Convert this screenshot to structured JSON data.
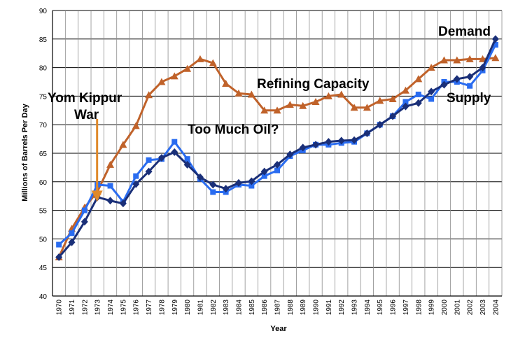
{
  "chart_data": {
    "type": "line",
    "xlabel": "Year",
    "ylabel": "Millions of Barrels Per Day",
    "ylim": [
      40,
      90
    ],
    "yticks": [
      40,
      45,
      50,
      55,
      60,
      65,
      70,
      75,
      80,
      85,
      90
    ],
    "categories": [
      "1970",
      "1971",
      "1972",
      "1973",
      "1974",
      "1975",
      "1976",
      "1977",
      "1978",
      "1979",
      "1980",
      "1981",
      "1982",
      "1983",
      "1984",
      "1985",
      "1986",
      "1987",
      "1988",
      "1989",
      "1990",
      "1991",
      "1992",
      "1993",
      "1994",
      "1995",
      "1996",
      "1997",
      "1998",
      "1999",
      "2000",
      "2001",
      "2002",
      "2003",
      "2004"
    ],
    "grid": true,
    "series": [
      {
        "key": "refining",
        "color": "#c0622a",
        "marker": "triangle",
        "values": [
          46.8,
          51.8,
          55.5,
          58.3,
          63.0,
          66.5,
          69.8,
          75.2,
          77.5,
          78.5,
          79.8,
          81.5,
          80.8,
          77.2,
          75.5,
          75.3,
          72.5,
          72.5,
          73.5,
          73.3,
          74.0,
          75.0,
          75.3,
          73.0,
          73.0,
          74.2,
          74.5,
          76.0,
          78.0,
          80.0,
          81.3,
          81.3,
          81.5,
          81.5,
          81.7
        ]
      },
      {
        "key": "supply",
        "color": "#2a6cf0",
        "marker": "square",
        "values": [
          49.0,
          51.0,
          55.0,
          59.5,
          59.3,
          56.5,
          61.0,
          63.8,
          64.0,
          67.0,
          64.0,
          60.5,
          58.2,
          58.2,
          59.5,
          59.3,
          61.0,
          62.0,
          64.5,
          65.5,
          66.5,
          66.5,
          66.8,
          67.0,
          68.5,
          70.0,
          71.5,
          74.0,
          75.3,
          74.5,
          77.5,
          77.5,
          76.8,
          79.5,
          84.0
        ]
      },
      {
        "key": "demand",
        "color": "#1a2f78",
        "marker": "diamond",
        "values": [
          46.8,
          49.4,
          53.0,
          57.3,
          56.7,
          56.2,
          59.6,
          61.8,
          64.2,
          65.2,
          63.0,
          60.8,
          59.5,
          58.8,
          59.8,
          60.1,
          61.8,
          63.0,
          64.8,
          66.0,
          66.5,
          67.0,
          67.2,
          67.3,
          68.5,
          70.0,
          71.5,
          73.2,
          73.8,
          75.8,
          77.0,
          78.0,
          78.4,
          80.0,
          85.0
        ]
      }
    ],
    "annotations": [
      {
        "key": "yom",
        "line1": "Yom Kippur",
        "line2": "War"
      },
      {
        "key": "too_much",
        "text": "Too Much Oil?"
      },
      {
        "key": "refining_label",
        "text": "Refining Capacity"
      },
      {
        "key": "demand_label",
        "text": "Demand"
      },
      {
        "key": "supply_label",
        "text": "Supply"
      }
    ],
    "arrow": {
      "color": "#e0892a",
      "from_value": 71,
      "to_value": 56.5,
      "at_category": "1973"
    }
  }
}
